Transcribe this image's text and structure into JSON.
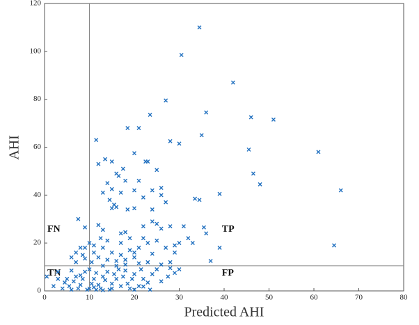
{
  "chart_data": {
    "type": "scatter",
    "x_label": "Predicted AHI",
    "y_label": "AHI",
    "color": "#1f6fbf",
    "xlim": [
      0,
      80
    ],
    "xticks": [
      0,
      10,
      20,
      30,
      40,
      50,
      60,
      70,
      80
    ],
    "ylim": [
      0,
      120
    ],
    "yticks": [
      0,
      20,
      40,
      60,
      80,
      100,
      120
    ],
    "threshold_x": 10,
    "threshold_y": 10.5,
    "annotations": [
      "FN",
      "TN",
      "TP",
      "FP"
    ],
    "x": [
      34.5,
      30.5,
      42,
      27,
      36,
      23.5,
      46,
      51,
      18.5,
      21,
      35,
      28,
      30,
      11.5,
      45.5,
      61,
      20,
      46.5,
      48,
      66,
      39,
      33.5,
      34.5,
      13.5,
      12,
      15,
      22.5,
      23,
      17.5,
      25,
      16,
      16.5,
      14,
      18,
      21,
      15,
      20,
      24,
      26,
      26,
      13,
      17,
      22,
      15.5,
      16,
      18.5,
      20,
      14.5,
      24,
      27,
      15,
      7.5,
      9,
      12,
      13,
      17,
      18,
      22,
      24,
      25,
      26,
      28,
      31,
      35.5,
      36,
      32,
      30,
      29,
      27,
      25,
      23,
      22,
      21,
      20,
      19,
      17,
      15,
      13,
      11,
      10,
      9,
      8,
      7,
      8.5,
      12,
      14,
      16,
      18,
      20,
      23,
      26,
      37,
      39,
      33,
      17,
      14,
      12.5,
      11,
      10.5,
      9,
      6,
      7,
      64.5,
      18,
      21,
      24,
      29,
      13,
      16,
      19,
      28,
      0.5,
      2,
      3,
      4,
      4.5,
      5,
      5.5,
      6,
      6.5,
      7,
      7.5,
      8,
      8.5,
      9,
      9.5,
      10,
      10,
      10.5,
      11,
      11.5,
      11.5,
      12,
      12.5,
      13,
      13.5,
      14,
      14.5,
      15,
      15.5,
      16,
      16.5,
      17,
      17.5,
      18,
      18.5,
      19,
      19.5,
      20,
      21,
      21.5,
      22,
      23,
      23.5,
      24,
      25,
      26,
      27.5,
      28,
      29,
      30,
      3,
      6,
      8,
      11,
      13,
      15,
      20,
      22
    ],
    "values": [
      110,
      98.5,
      87,
      79.5,
      74.5,
      73.5,
      72.5,
      71.5,
      68,
      68,
      65,
      62.5,
      61.5,
      63,
      59,
      58,
      57.5,
      49,
      44.5,
      42,
      40.5,
      38.5,
      38,
      55,
      53,
      54,
      54,
      54,
      51,
      50.5,
      49,
      48,
      45,
      46,
      46,
      42.5,
      42,
      42,
      43,
      40,
      41,
      41,
      39,
      36,
      35,
      34,
      34.5,
      38,
      34,
      37,
      34.5,
      30,
      26.5,
      27.5,
      25.5,
      24,
      24.5,
      27,
      29,
      28,
      26,
      27,
      27,
      26.5,
      24,
      22,
      20,
      19,
      18,
      21,
      20,
      22,
      18,
      16,
      17,
      15,
      16,
      18,
      19,
      20,
      18,
      18,
      16,
      15,
      14,
      13,
      12.5,
      13,
      14,
      12,
      11,
      12.5,
      18,
      20,
      20,
      21,
      22,
      16,
      12,
      13.5,
      14,
      12,
      19,
      11,
      11.5,
      15.5,
      16,
      10.5,
      10.5,
      22,
      12,
      6,
      2,
      5,
      1,
      3.5,
      5,
      2,
      0.5,
      4,
      6,
      1,
      2.5,
      5,
      8,
      0.5,
      1,
      9,
      3,
      5,
      0.5,
      7.5,
      2.5,
      1,
      6,
      4.5,
      8,
      0.5,
      3,
      7,
      5,
      9,
      2,
      6,
      8.5,
      3,
      1,
      5,
      7,
      2,
      9,
      5,
      3.5,
      0.5,
      7,
      9,
      4,
      6,
      9.5,
      7.5,
      9,
      8,
      8.5,
      6.5,
      1.5,
      0.3,
      1,
      0.5,
      1.8
    ]
  }
}
